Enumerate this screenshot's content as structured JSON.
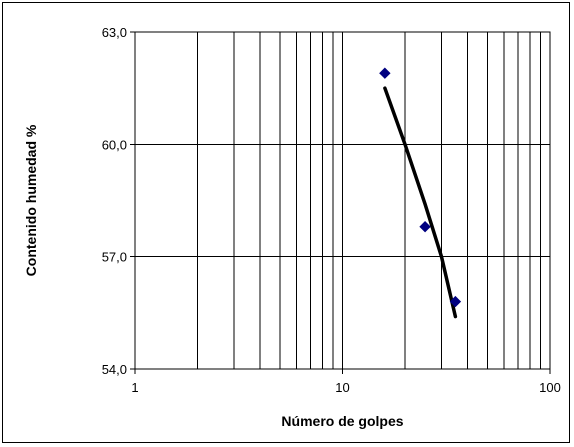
{
  "chart_data": {
    "type": "scatter",
    "title": "",
    "xlabel": "Número de golpes",
    "ylabel": "Contenido humedad %",
    "x_scale": "log",
    "xlim": [
      1,
      100
    ],
    "ylim": [
      54.0,
      63.0
    ],
    "x_ticks": [
      "1",
      "10",
      "100"
    ],
    "y_ticks": [
      "54,0",
      "57,0",
      "60,0",
      "63,0"
    ],
    "grid": true,
    "legend": "none",
    "series": [
      {
        "points": [
          {
            "x": 16,
            "y": 61.9
          },
          {
            "x": 25,
            "y": 57.8
          },
          {
            "x": 35,
            "y": 55.8
          }
        ],
        "marker": "diamond",
        "color": "#000080"
      }
    ],
    "trendline": {
      "type": "curve",
      "color": "#000000",
      "points": [
        {
          "x": 16,
          "y": 61.5
        },
        {
          "x": 20,
          "y": 60.0
        },
        {
          "x": 25,
          "y": 58.4
        },
        {
          "x": 30,
          "y": 57.0
        },
        {
          "x": 35,
          "y": 55.4
        }
      ]
    }
  }
}
